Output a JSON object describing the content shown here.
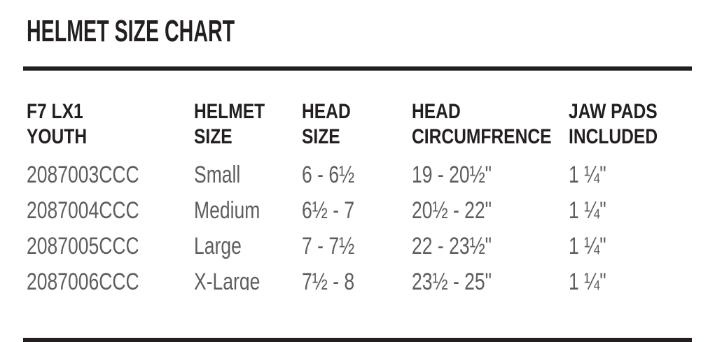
{
  "title": "HELMET SIZE CHART",
  "colors": {
    "background": "#ffffff",
    "heading": "#231f20",
    "data_text": "#5d5e60"
  },
  "table": {
    "columns": [
      {
        "id": "model",
        "label_line1": "F7 LX1",
        "label_line2": "YOUTH"
      },
      {
        "id": "helmet_size",
        "label_line1": "HELMET",
        "label_line2": "SIZE"
      },
      {
        "id": "head_size",
        "label_line1": "HEAD",
        "label_line2": "SIZE"
      },
      {
        "id": "head_circumference",
        "label_line1": "HEAD",
        "label_line2": "CIRCUMFRENCE"
      },
      {
        "id": "jaw_pads",
        "label_line1": "JAW PADS",
        "label_line2": "INCLUDED"
      }
    ],
    "rows": [
      {
        "model": "2087003CCC",
        "helmet_size": "Small",
        "head_size": "6 - 6½",
        "head_circumference": "19 - 20½\"",
        "jaw_pads": "1 ¼\""
      },
      {
        "model": "2087004CCC",
        "helmet_size": "Medium",
        "head_size": "6½ - 7",
        "head_circumference": "20½ - 22\"",
        "jaw_pads": "1 ¼\""
      },
      {
        "model": "2087005CCC",
        "helmet_size": "Large",
        "head_size": "7 - 7½",
        "head_circumference": "22 - 23½\"",
        "jaw_pads": "1 ¼\""
      },
      {
        "model": "2087006CCC",
        "helmet_size": "X-Large",
        "head_size": "7½ - 8",
        "head_circumference": "23½ - 25\"",
        "jaw_pads": "1 ¼\""
      }
    ]
  }
}
